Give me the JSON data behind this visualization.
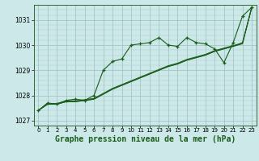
{
  "background_color": "#cce8e8",
  "grid_color": "#9bbfbf",
  "line_color": "#1a5c1a",
  "marker_color": "#1a5c1a",
  "title": "Graphe pression niveau de la mer (hPa)",
  "title_fontsize": 7.0,
  "xlim": [
    -0.5,
    23.5
  ],
  "ylim": [
    1026.8,
    1031.6
  ],
  "yticks": [
    1027,
    1028,
    1029,
    1030,
    1031
  ],
  "xtick_labels": [
    "0",
    "1",
    "2",
    "3",
    "4",
    "5",
    "6",
    "7",
    "8",
    "9",
    "10",
    "11",
    "12",
    "13",
    "14",
    "15",
    "16",
    "17",
    "18",
    "19",
    "20",
    "21",
    "22",
    "23"
  ],
  "series": [
    [
      1027.4,
      1027.7,
      1027.65,
      1027.8,
      1027.85,
      1027.8,
      1028.0,
      1029.0,
      1029.35,
      1029.45,
      1030.0,
      1030.05,
      1030.1,
      1030.3,
      1030.0,
      1029.95,
      1030.3,
      1030.1,
      1030.05,
      1029.85,
      1029.3,
      1030.1,
      1031.15,
      1031.5
    ],
    [
      1027.4,
      1027.65,
      1027.65,
      1027.75,
      1027.75,
      1027.8,
      1027.85,
      1028.05,
      1028.25,
      1028.4,
      1028.55,
      1028.7,
      1028.85,
      1029.0,
      1029.15,
      1029.25,
      1029.4,
      1029.5,
      1029.6,
      1029.75,
      1029.85,
      1029.95,
      1030.05,
      1031.5
    ],
    [
      1027.4,
      1027.65,
      1027.65,
      1027.75,
      1027.75,
      1027.8,
      1027.85,
      1028.05,
      1028.25,
      1028.4,
      1028.55,
      1028.7,
      1028.85,
      1029.0,
      1029.15,
      1029.25,
      1029.4,
      1029.5,
      1029.6,
      1029.75,
      1029.85,
      1029.95,
      1030.1,
      1031.5
    ],
    [
      1027.4,
      1027.68,
      1027.68,
      1027.78,
      1027.78,
      1027.83,
      1027.88,
      1028.08,
      1028.28,
      1028.43,
      1028.58,
      1028.73,
      1028.88,
      1029.03,
      1029.18,
      1029.28,
      1029.43,
      1029.53,
      1029.63,
      1029.78,
      1029.88,
      1029.98,
      1030.08,
      1031.5
    ]
  ]
}
